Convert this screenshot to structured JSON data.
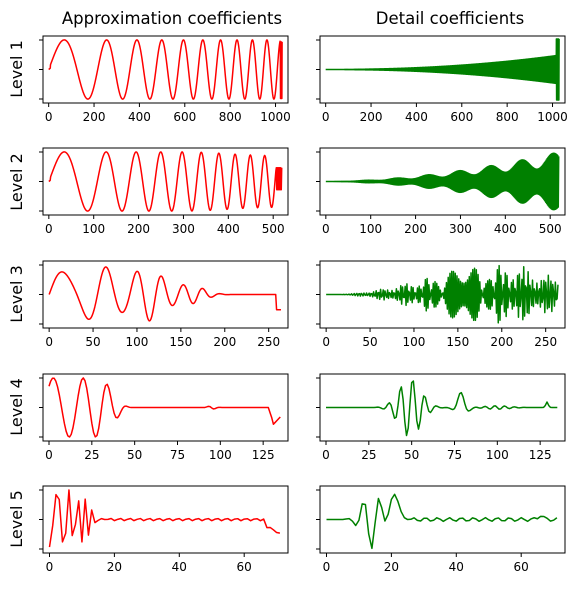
{
  "columns": [
    {
      "title": "Approximation coefficients",
      "color": "#ff0000"
    },
    {
      "title": "Detail coefficients",
      "color": "#008000"
    }
  ],
  "rows": [
    {
      "label": "Level 1"
    },
    {
      "label": "Level 2"
    },
    {
      "label": "Level 3"
    },
    {
      "label": "Level 4"
    },
    {
      "label": "Level 5"
    }
  ],
  "chart_data": [
    {
      "type": "line",
      "panel": "approx-level-1",
      "color": "#ff0000",
      "xlim": [
        -25,
        1055
      ],
      "xticks": [
        0,
        200,
        400,
        600,
        800,
        1000
      ],
      "yticks": 3,
      "signal": "chirp-approx",
      "n": 1030
    },
    {
      "type": "line",
      "panel": "detail-level-1",
      "color": "#008000",
      "xlim": [
        -25,
        1055
      ],
      "xticks": [
        0,
        200,
        400,
        600,
        800,
        1000
      ],
      "yticks": 3,
      "signal": "detail-1",
      "n": 1030
    },
    {
      "type": "line",
      "panel": "approx-level-2",
      "color": "#ff0000",
      "xlim": [
        -13,
        533
      ],
      "xticks": [
        0,
        100,
        200,
        300,
        400,
        500
      ],
      "yticks": 3,
      "signal": "approx-2",
      "n": 520
    },
    {
      "type": "line",
      "panel": "detail-level-2",
      "color": "#008000",
      "xlim": [
        -13,
        533
      ],
      "xticks": [
        0,
        100,
        200,
        300,
        400,
        500
      ],
      "yticks": 3,
      "signal": "detail-2",
      "n": 520
    },
    {
      "type": "line",
      "panel": "approx-level-3",
      "color": "#ff0000",
      "xlim": [
        -7,
        272
      ],
      "xticks": [
        0,
        50,
        100,
        150,
        200,
        250
      ],
      "yticks": 3,
      "signal": "approx-3",
      "n": 265
    },
    {
      "type": "line",
      "panel": "detail-level-3",
      "color": "#008000",
      "xlim": [
        -7,
        272
      ],
      "xticks": [
        0,
        50,
        100,
        150,
        200,
        250
      ],
      "yticks": 3,
      "signal": "detail-3",
      "n": 265
    },
    {
      "type": "line",
      "panel": "approx-level-4",
      "color": "#ff0000",
      "xlim": [
        -3.5,
        139.5
      ],
      "xticks": [
        0,
        25,
        50,
        75,
        100,
        125
      ],
      "yticks": 3,
      "signal": "approx-4",
      "n": 136
    },
    {
      "type": "line",
      "panel": "detail-level-4",
      "color": "#008000",
      "xlim": [
        -3.5,
        139.5
      ],
      "xticks": [
        0,
        25,
        50,
        75,
        100,
        125
      ],
      "yticks": 3,
      "signal": "detail-4",
      "n": 136
    },
    {
      "type": "line",
      "panel": "approx-level-5",
      "color": "#ff0000",
      "xlim": [
        -2,
        73.5
      ],
      "xticks": [
        0,
        20,
        40,
        60
      ],
      "yticks": 3,
      "signal": "approx-5",
      "n": 72
    },
    {
      "type": "line",
      "panel": "detail-level-5",
      "color": "#008000",
      "xlim": [
        -2,
        73.5
      ],
      "xticks": [
        0,
        20,
        40,
        60
      ],
      "yticks": 3,
      "signal": "detail-5",
      "n": 72
    }
  ]
}
